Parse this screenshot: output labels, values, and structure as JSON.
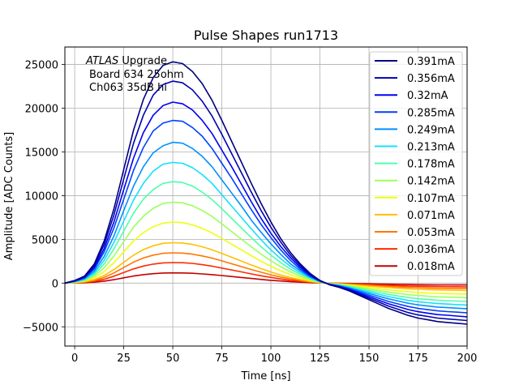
{
  "chart_data": {
    "type": "line",
    "title": "Pulse Shapes run1713",
    "xlabel": "Time [ns]",
    "ylabel": "Amplitude [ADC Counts]",
    "xlim": [
      -5,
      200
    ],
    "ylim": [
      -7200,
      27000
    ],
    "grid": true,
    "legend_position": "top-right",
    "xticks": [
      0,
      25,
      50,
      75,
      100,
      125,
      150,
      175,
      200
    ],
    "yticks": [
      -5000,
      0,
      5000,
      10000,
      15000,
      20000,
      25000
    ],
    "annotation": {
      "experiment": "ATLAS",
      "experiment_suffix": "Upgrade",
      "board": "Board 634 25ohm",
      "channel": "Ch063 35dB hi"
    },
    "x": [
      -5,
      0,
      5,
      10,
      15,
      20,
      25,
      30,
      35,
      40,
      45,
      50,
      55,
      60,
      65,
      70,
      75,
      80,
      85,
      90,
      95,
      100,
      105,
      110,
      115,
      120,
      125,
      130,
      135,
      140,
      145,
      150,
      155,
      160,
      165,
      170,
      175,
      180,
      185,
      190,
      195,
      200
    ],
    "series": [
      {
        "name": "0.391mA",
        "color": "#00007f",
        "values": [
          0,
          300,
          800,
          2200,
          4800,
          8500,
          13000,
          17500,
          21000,
          23500,
          24900,
          25300,
          25100,
          24200,
          22800,
          20900,
          18600,
          16200,
          13800,
          11400,
          9100,
          7000,
          5100,
          3500,
          2200,
          1100,
          300,
          -200,
          -500,
          -900,
          -1400,
          -1900,
          -2400,
          -2900,
          -3300,
          -3700,
          -4000,
          -4200,
          -4400,
          -4500,
          -4600,
          -4700
        ]
      },
      {
        "name": "0.356mA",
        "color": "#0000b2",
        "values": [
          0,
          270,
          720,
          2000,
          4400,
          7800,
          11900,
          16000,
          19200,
          21500,
          22700,
          23100,
          22900,
          22100,
          20800,
          19100,
          17000,
          14800,
          12600,
          10400,
          8300,
          6400,
          4700,
          3200,
          2000,
          1000,
          300,
          -180,
          -450,
          -820,
          -1280,
          -1730,
          -2180,
          -2640,
          -3000,
          -3370,
          -3640,
          -3820,
          -4000,
          -4100,
          -4190,
          -4280
        ]
      },
      {
        "name": "0.32mA",
        "color": "#0000f1",
        "values": [
          0,
          240,
          650,
          1790,
          3950,
          7000,
          10700,
          14300,
          17200,
          19200,
          20300,
          20700,
          20500,
          19800,
          18600,
          17100,
          15200,
          13300,
          11300,
          9300,
          7400,
          5700,
          4200,
          2900,
          1800,
          900,
          250,
          -160,
          -410,
          -740,
          -1150,
          -1560,
          -1960,
          -2370,
          -2700,
          -3030,
          -3270,
          -3440,
          -3600,
          -3680,
          -3770,
          -3850
        ]
      },
      {
        "name": "0.285mA",
        "color": "#0040ff",
        "values": [
          0,
          220,
          590,
          1620,
          3570,
          6300,
          9600,
          12900,
          15500,
          17400,
          18300,
          18600,
          18500,
          17800,
          16800,
          15400,
          13700,
          12000,
          10200,
          8400,
          6700,
          5200,
          3800,
          2600,
          1600,
          800,
          220,
          -140,
          -360,
          -650,
          -1020,
          -1380,
          -1730,
          -2100,
          -2390,
          -2680,
          -2890,
          -3040,
          -3180,
          -3260,
          -3330,
          -3400
        ]
      },
      {
        "name": "0.249mA",
        "color": "#0090ff",
        "values": [
          0,
          190,
          500,
          1380,
          3040,
          5400,
          8300,
          11100,
          13300,
          14900,
          15700,
          16100,
          16000,
          15400,
          14500,
          13300,
          11800,
          10300,
          8800,
          7200,
          5800,
          4500,
          3300,
          2200,
          1400,
          700,
          190,
          -120,
          -310,
          -560,
          -880,
          -1190,
          -1500,
          -1810,
          -2060,
          -2310,
          -2490,
          -2620,
          -2740,
          -2810,
          -2870,
          -2930
        ]
      },
      {
        "name": "0.213mA",
        "color": "#14e0ff",
        "values": [
          0,
          160,
          430,
          1180,
          2600,
          4650,
          7100,
          9500,
          11400,
          12800,
          13600,
          13800,
          13700,
          13200,
          12400,
          11400,
          10100,
          8800,
          7500,
          6200,
          4950,
          3800,
          2800,
          1900,
          1200,
          600,
          160,
          -100,
          -270,
          -480,
          -750,
          -1020,
          -1280,
          -1550,
          -1760,
          -1980,
          -2130,
          -2240,
          -2340,
          -2400,
          -2460,
          -2510
        ]
      },
      {
        "name": "0.178mA",
        "color": "#4dffaa",
        "values": [
          0,
          140,
          360,
          990,
          2180,
          3900,
          5950,
          8000,
          9600,
          10700,
          11400,
          11600,
          11500,
          11100,
          10400,
          9550,
          8500,
          7400,
          6300,
          5200,
          4150,
          3200,
          2350,
          1600,
          1000,
          500,
          140,
          -85,
          -220,
          -400,
          -630,
          -850,
          -1070,
          -1300,
          -1480,
          -1650,
          -1790,
          -1880,
          -1960,
          -2010,
          -2060,
          -2100
        ]
      },
      {
        "name": "0.142mA",
        "color": "#9eff5a",
        "values": [
          0,
          110,
          290,
          790,
          1740,
          3100,
          4750,
          6400,
          7650,
          8550,
          9100,
          9250,
          9180,
          8850,
          8300,
          7620,
          6780,
          5900,
          5020,
          4150,
          3300,
          2550,
          1870,
          1280,
          800,
          400,
          110,
          -70,
          -180,
          -320,
          -500,
          -680,
          -860,
          -1030,
          -1180,
          -1320,
          -1420,
          -1500,
          -1570,
          -1610,
          -1640,
          -1680
        ]
      },
      {
        "name": "0.107mA",
        "color": "#ecff0f",
        "values": [
          0,
          80,
          220,
          600,
          1310,
          2340,
          3580,
          4820,
          5780,
          6450,
          6850,
          6980,
          6920,
          6670,
          6260,
          5750,
          5110,
          4450,
          3790,
          3130,
          2490,
          1920,
          1410,
          960,
          600,
          300,
          80,
          -50,
          -130,
          -240,
          -380,
          -510,
          -640,
          -780,
          -890,
          -990,
          -1070,
          -1130,
          -1180,
          -1210,
          -1240,
          -1260
        ]
      },
      {
        "name": "0.071mA",
        "color": "#ffc000",
        "values": [
          0,
          60,
          150,
          400,
          870,
          1550,
          2370,
          3190,
          3830,
          4270,
          4540,
          4620,
          4580,
          4420,
          4150,
          3810,
          3390,
          2950,
          2510,
          2070,
          1650,
          1270,
          930,
          640,
          400,
          200,
          55,
          -35,
          -90,
          -160,
          -250,
          -340,
          -430,
          -510,
          -590,
          -660,
          -710,
          -750,
          -780,
          -800,
          -820,
          -840
        ]
      },
      {
        "name": "0.053mA",
        "color": "#ff7600",
        "values": [
          0,
          40,
          110,
          300,
          650,
          1160,
          1780,
          2400,
          2870,
          3200,
          3400,
          3460,
          3430,
          3310,
          3110,
          2860,
          2540,
          2210,
          1880,
          1550,
          1240,
          950,
          700,
          480,
          300,
          150,
          40,
          -25,
          -70,
          -120,
          -190,
          -250,
          -320,
          -390,
          -440,
          -490,
          -530,
          -560,
          -590,
          -600,
          -610,
          -630
        ]
      },
      {
        "name": "0.036mA",
        "color": "#ff2a00",
        "values": [
          0,
          28,
          75,
          200,
          440,
          790,
          1210,
          1620,
          1950,
          2170,
          2310,
          2350,
          2330,
          2250,
          2110,
          1940,
          1720,
          1500,
          1280,
          1050,
          840,
          650,
          470,
          320,
          200,
          100,
          27,
          -17,
          -45,
          -80,
          -130,
          -170,
          -220,
          -260,
          -300,
          -330,
          -360,
          -380,
          -400,
          -410,
          -420,
          -430
        ]
      },
      {
        "name": "0.018mA",
        "color": "#c40000",
        "values": [
          0,
          14,
          36,
          100,
          220,
          390,
          600,
          810,
          970,
          1080,
          1150,
          1170,
          1160,
          1120,
          1050,
          970,
          860,
          750,
          640,
          530,
          420,
          320,
          240,
          160,
          100,
          50,
          14,
          -9,
          -23,
          -40,
          -63,
          -85,
          -110,
          -130,
          -150,
          -165,
          -180,
          -190,
          -200,
          -205,
          -210,
          -215
        ]
      }
    ]
  }
}
